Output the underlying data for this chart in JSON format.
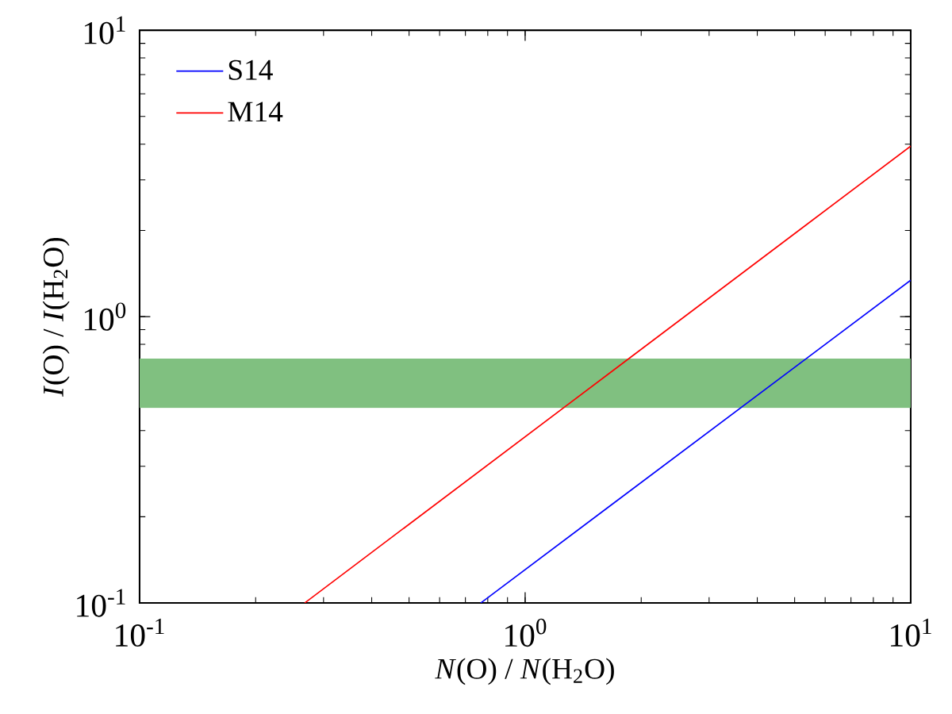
{
  "chart_data": {
    "type": "line",
    "xlabel": "*N*(O) / *N*(H$_{2}$O)",
    "ylabel": "*I*(O) / *I*(H$_{2}$O)",
    "log": "xy",
    "xlim": [
      0.1,
      10
    ],
    "ylim": [
      0.1,
      10
    ],
    "xticks": [
      {
        "value": 0.1,
        "label": "10$^{-1}$"
      },
      {
        "value": 1,
        "label": "10$^{0}$"
      },
      {
        "value": 10,
        "label": "10$^{1}$"
      }
    ],
    "yticks": [
      {
        "value": 0.1,
        "label": "10$^{-1}$"
      },
      {
        "value": 1,
        "label": "10$^{0}$"
      },
      {
        "value": 10,
        "label": "10$^{1}$"
      }
    ],
    "series": [
      {
        "name": "S14",
        "color": "#0000ff",
        "x": [
          0.767,
          10
        ],
        "values": [
          0.1,
          1.34
        ]
      },
      {
        "name": "M14",
        "color": "#ff0000",
        "x": [
          0.268,
          10
        ],
        "values": [
          0.1,
          3.94
        ]
      }
    ],
    "bands": [
      {
        "axis": "y",
        "from": 0.48,
        "to": 0.713,
        "color": "#80c080"
      }
    ],
    "legend": "top left"
  }
}
